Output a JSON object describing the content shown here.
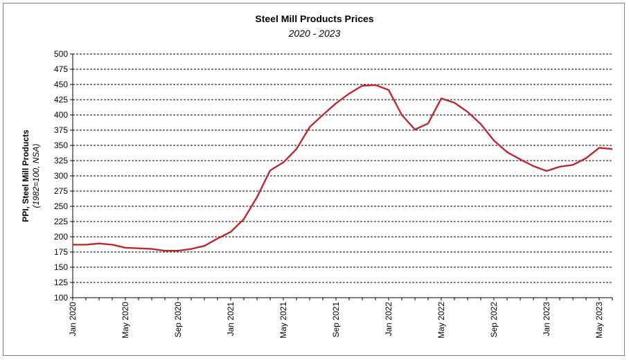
{
  "chart_data": {
    "type": "line",
    "title": "Steel Mill Products Prices",
    "subtitle": "2020 - 2023",
    "ylabel": "PPI, Steel Mill Products",
    "ylabel_note": "(1982=100, NSA)",
    "xlabel": "",
    "ylim": [
      100,
      500
    ],
    "y_ticks": [
      100,
      125,
      150,
      175,
      200,
      225,
      250,
      275,
      300,
      325,
      350,
      375,
      400,
      425,
      450,
      475,
      500
    ],
    "x_tick_labels": [
      "Jan 2020",
      "May 2020",
      "Sep 2020",
      "Jan 2021",
      "May 2021",
      "Sep 2021",
      "Jan 2022",
      "May 2022",
      "Sep 2022",
      "Jan 2023",
      "May 2023"
    ],
    "grid": "horizontal dashed",
    "legend": "none",
    "line_color": "#c0272d",
    "x": [
      "Jan 2020",
      "Feb 2020",
      "Mar 2020",
      "Apr 2020",
      "May 2020",
      "Jun 2020",
      "Jul 2020",
      "Aug 2020",
      "Sep 2020",
      "Oct 2020",
      "Nov 2020",
      "Dec 2020",
      "Jan 2021",
      "Feb 2021",
      "Mar 2021",
      "Apr 2021",
      "May 2021",
      "Jun 2021",
      "Jul 2021",
      "Aug 2021",
      "Sep 2021",
      "Oct 2021",
      "Nov 2021",
      "Dec 2021",
      "Jan 2022",
      "Feb 2022",
      "Mar 2022",
      "Apr 2022",
      "May 2022",
      "Jun 2022",
      "Jul 2022",
      "Aug 2022",
      "Sep 2022",
      "Oct 2022",
      "Nov 2022",
      "Dec 2022",
      "Jan 2023",
      "Feb 2023",
      "Mar 2023",
      "Apr 2023",
      "May 2023",
      "Jun 2023"
    ],
    "values": [
      187,
      187,
      189,
      187,
      182,
      181,
      180,
      177,
      177,
      180,
      185,
      197,
      208,
      229,
      265,
      309,
      322,
      344,
      380,
      400,
      419,
      435,
      448,
      449,
      441,
      400,
      376,
      386,
      427,
      420,
      405,
      385,
      358,
      339,
      327,
      316,
      308,
      315,
      318,
      329,
      346,
      344
    ]
  }
}
